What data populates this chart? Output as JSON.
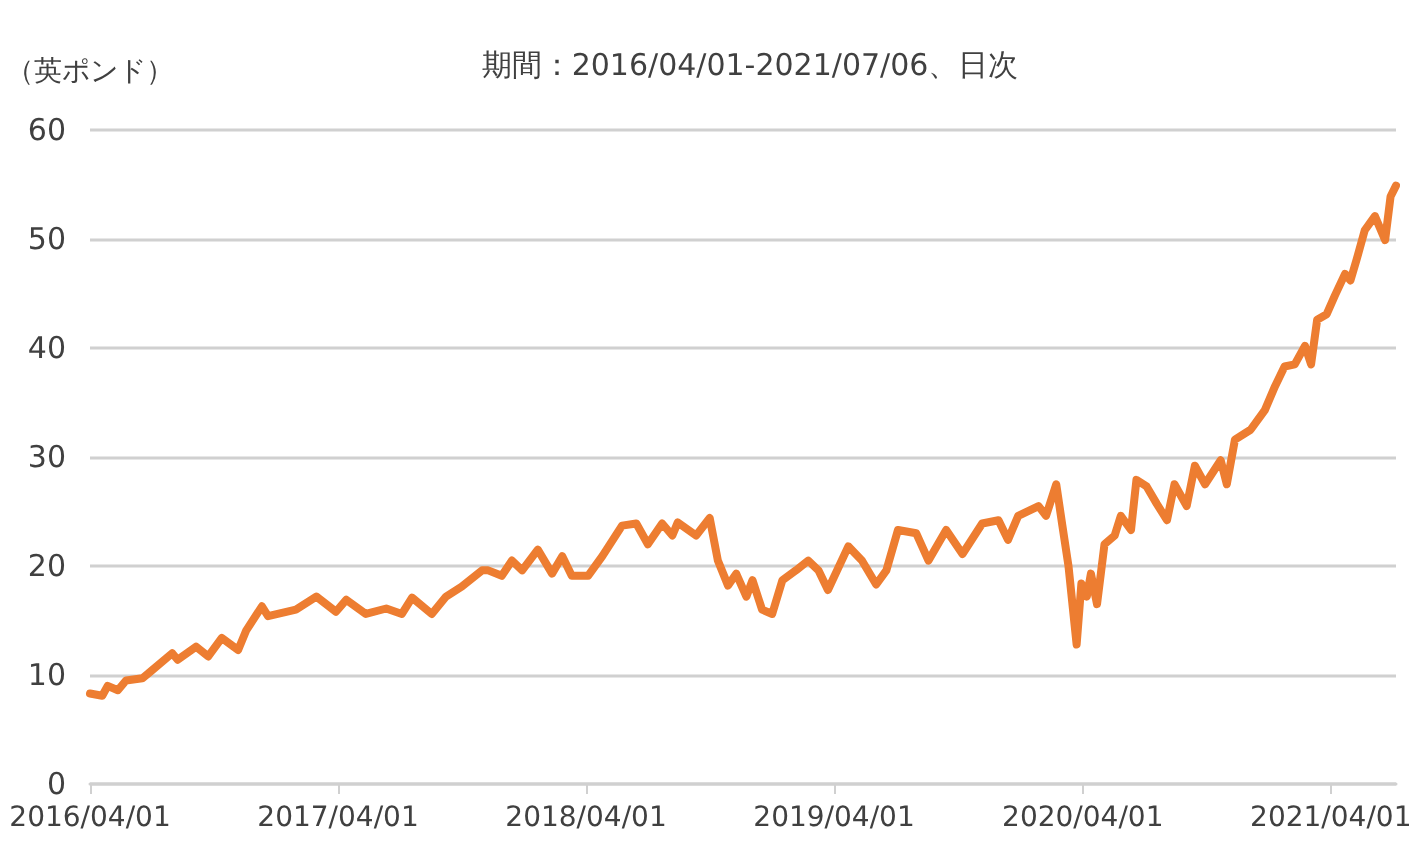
{
  "chart_data": {
    "type": "line",
    "title": "期間：2016/04/01-2021/07/06、日次",
    "ylabel": "（英ポンド）",
    "x": [
      "2016-04-01",
      "2016-04-19",
      "2016-04-27",
      "2016-05-12",
      "2016-05-24",
      "2016-06-17",
      "2016-06-25",
      "2016-07-31",
      "2016-08-08",
      "2016-09-04",
      "2016-09-22",
      "2016-10-12",
      "2016-11-05",
      "2016-11-17",
      "2016-12-10",
      "2016-12-19",
      "2017-01-29",
      "2017-02-28",
      "2017-03-29",
      "2017-04-13",
      "2017-05-12",
      "2017-06-11",
      "2017-07-04",
      "2017-07-19",
      "2017-08-17",
      "2017-09-07",
      "2017-09-30",
      "2017-10-30",
      "2017-11-08",
      "2017-11-28",
      "2017-12-13",
      "2017-12-28",
      "2018-01-20",
      "2018-02-10",
      "2018-02-25",
      "2018-03-11",
      "2018-04-04",
      "2018-04-25",
      "2018-05-24",
      "2018-06-14",
      "2018-07-01",
      "2018-07-22",
      "2018-08-06",
      "2018-08-14",
      "2018-09-10",
      "2018-09-30",
      "2018-10-12",
      "2018-10-27",
      "2018-11-08",
      "2018-11-23",
      "2018-12-02",
      "2018-12-16",
      "2018-12-31",
      "2019-01-15",
      "2019-02-04",
      "2019-02-22",
      "2019-03-09",
      "2019-03-23",
      "2019-04-22",
      "2019-05-12",
      "2019-06-02",
      "2019-06-17",
      "2019-07-04",
      "2019-07-31",
      "2019-08-18",
      "2019-09-13",
      "2019-10-07",
      "2019-11-05",
      "2019-11-29",
      "2019-12-13",
      "2019-12-28",
      "2020-01-27",
      "2020-02-07",
      "2020-02-22",
      "2020-03-02",
      "2020-03-11",
      "2020-03-23",
      "2020-03-30",
      "2020-04-07",
      "2020-04-13",
      "2020-04-22",
      "2020-05-03",
      "2020-05-18",
      "2020-05-27",
      "2020-06-11",
      "2020-06-19",
      "2020-07-04",
      "2020-07-19",
      "2020-08-03",
      "2020-08-14",
      "2020-09-01",
      "2020-09-13",
      "2020-09-28",
      "2020-10-21",
      "2020-10-30",
      "2020-11-11",
      "2020-12-04",
      "2020-12-25",
      "2021-01-09",
      "2021-01-23",
      "2021-02-07",
      "2021-02-22",
      "2021-03-03",
      "2021-03-12",
      "2021-03-26",
      "2021-04-07",
      "2021-04-22",
      "2021-04-30",
      "2021-05-09",
      "2021-05-21",
      "2021-06-05",
      "2021-06-20",
      "2021-06-28",
      "2021-07-06"
    ],
    "series": [
      {
        "color": "#ed7d31",
        "values": [
          8.3,
          8.1,
          9.0,
          8.6,
          9.5,
          9.7,
          10.1,
          12.0,
          11.4,
          12.6,
          11.7,
          13.4,
          12.3,
          14.1,
          16.3,
          15.4,
          16.0,
          17.2,
          15.8,
          16.9,
          15.6,
          16.1,
          15.6,
          17.1,
          15.6,
          17.2,
          18.1,
          19.6,
          19.6,
          19.1,
          20.5,
          19.6,
          21.5,
          19.3,
          20.9,
          19.1,
          19.1,
          20.9,
          23.7,
          23.9,
          22.0,
          23.9,
          22.8,
          24.0,
          22.8,
          24.4,
          20.5,
          18.2,
          19.3,
          17.2,
          18.7,
          16.0,
          15.6,
          18.7,
          19.6,
          20.5,
          19.6,
          17.8,
          21.8,
          20.5,
          18.3,
          19.6,
          23.3,
          23.0,
          20.5,
          23.3,
          21.1,
          23.9,
          24.2,
          22.4,
          24.6,
          25.5,
          24.6,
          27.5,
          23.7,
          20.0,
          12.8,
          18.4,
          17.2,
          19.3,
          16.5,
          22.0,
          22.8,
          24.6,
          23.3,
          27.9,
          27.3,
          25.7,
          24.2,
          27.5,
          25.5,
          29.2,
          27.5,
          29.7,
          27.5,
          31.6,
          32.5,
          34.3,
          36.5,
          38.3,
          38.5,
          40.2,
          38.5,
          42.6,
          43.1,
          44.8,
          46.8,
          46.2,
          48.1,
          50.8,
          52.1,
          49.9,
          53.9,
          54.9
        ]
      }
    ],
    "xlim": [
      "2016-04-01",
      "2021-07-06"
    ],
    "xticks": [
      {
        "value": "2016-04-01",
        "label": "2016/04/01"
      },
      {
        "value": "2017-04-01",
        "label": "2017/04/01"
      },
      {
        "value": "2018-04-01",
        "label": "2018/04/01"
      },
      {
        "value": "2019-04-01",
        "label": "2019/04/01"
      },
      {
        "value": "2020-04-01",
        "label": "2020/04/01"
      },
      {
        "value": "2021-04-01",
        "label": "2021/04/01"
      }
    ],
    "ylim": [
      0,
      60
    ],
    "yticks": [
      0,
      10,
      20,
      30,
      40,
      50,
      60
    ],
    "grid": "y"
  }
}
